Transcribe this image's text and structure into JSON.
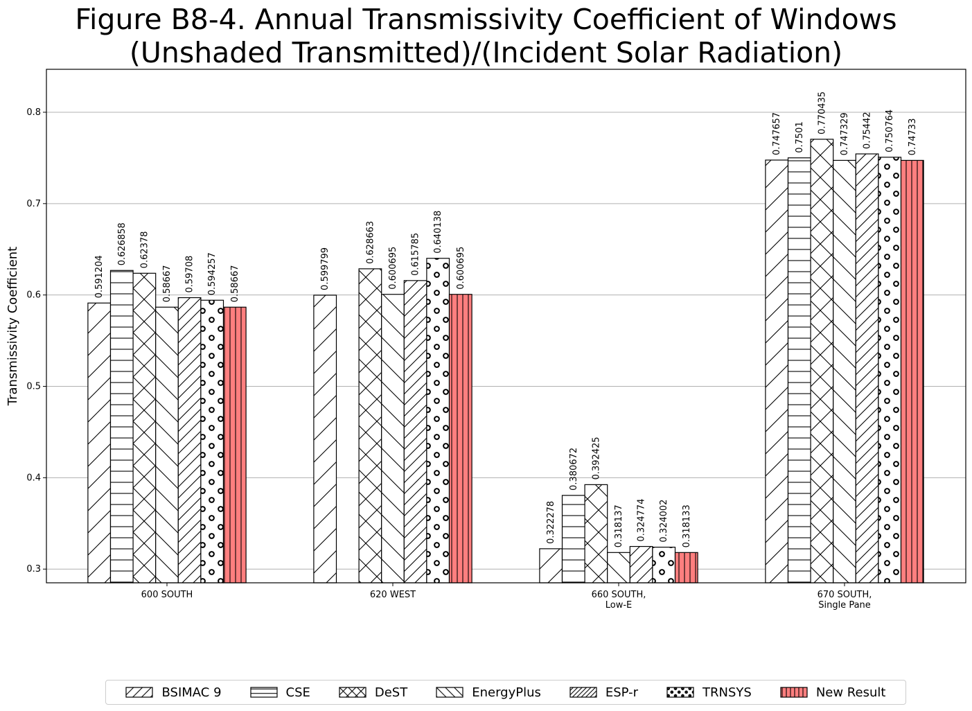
{
  "title": {
    "line1": "Figure B8-4.  Annual Transmissivity Coefficient of Windows",
    "line2": "(Unshaded Transmitted)/(Incident Solar Radiation)"
  },
  "chart_data": {
    "type": "bar",
    "ylabel": "Transmissivity Coefficient",
    "xlabel": "",
    "ylim": [
      0.285,
      0.847
    ],
    "yticks": [
      0.3,
      0.4,
      0.5,
      0.6,
      0.7,
      0.8
    ],
    "grid": "y",
    "legend_position": "bottom-center",
    "categories": [
      [
        "600 SOUTH"
      ],
      [
        "620 WEST"
      ],
      [
        "660 SOUTH,",
        "Low-E"
      ],
      [
        "670 SOUTH,",
        "Single Pane"
      ]
    ],
    "series": [
      {
        "name": "BSIMAC 9",
        "pattern": "diag-forward",
        "color": "#ffffff",
        "values": [
          0.591204,
          0.599799,
          0.322278,
          0.747657
        ],
        "labels": [
          "0.591204",
          "0.599799",
          "0.322278",
          "0.747657"
        ]
      },
      {
        "name": "CSE",
        "pattern": "horizontal",
        "color": "#ffffff",
        "values": [
          0.626858,
          null,
          0.380672,
          0.7501
        ],
        "labels": [
          "0.626858",
          "",
          "0.380672",
          "0.7501"
        ]
      },
      {
        "name": "DeST",
        "pattern": "cross-diag",
        "color": "#ffffff",
        "values": [
          0.62378,
          0.628663,
          0.392425,
          0.770435
        ],
        "labels": [
          "0.62378",
          "0.628663",
          "0.392425",
          "0.770435"
        ]
      },
      {
        "name": "EnergyPlus",
        "pattern": "diag-back",
        "color": "#ffffff",
        "values": [
          0.58667,
          0.600695,
          0.318137,
          0.747329
        ],
        "labels": [
          "0.58667",
          "0.600695",
          "0.318137",
          "0.747329"
        ]
      },
      {
        "name": "ESP-r",
        "pattern": "diag-forward-dense",
        "color": "#ffffff",
        "values": [
          0.59708,
          0.615785,
          0.324774,
          0.75442
        ],
        "labels": [
          "0.59708",
          "0.615785",
          "0.324774",
          "0.75442"
        ]
      },
      {
        "name": "TRNSYS",
        "pattern": "circles",
        "color": "#ffffff",
        "values": [
          0.594257,
          0.640138,
          0.324002,
          0.750764
        ],
        "labels": [
          "0.594257",
          "0.640138",
          "0.324002",
          "0.750764"
        ]
      },
      {
        "name": "New Result",
        "pattern": "vertical",
        "color": "#ff7f7f",
        "values": [
          0.58667,
          0.600695,
          0.318133,
          0.74733
        ],
        "labels": [
          "0.58667",
          "0.600695",
          "0.318133",
          "0.74733"
        ]
      }
    ]
  }
}
